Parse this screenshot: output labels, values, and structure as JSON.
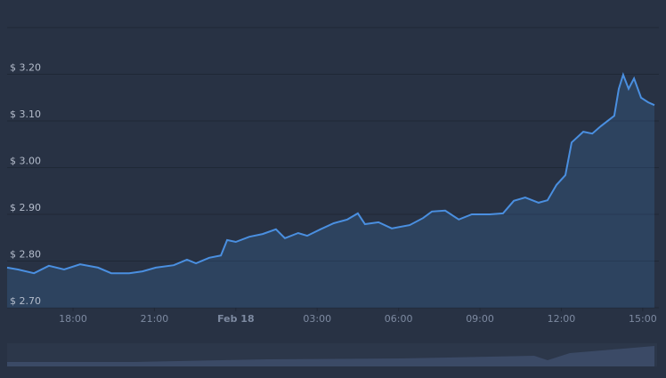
{
  "chart_data": {
    "type": "area",
    "x": [
      15.57,
      15.97,
      16.56,
      17.11,
      17.67,
      18.26,
      18.92,
      19.41,
      20.07,
      20.56,
      21.05,
      21.71,
      22.2,
      22.53,
      23.02,
      23.45,
      23.68,
      24.0,
      24.5,
      24.99,
      25.48,
      25.81,
      26.3,
      26.63,
      27.12,
      27.61,
      28.11,
      28.5,
      28.76,
      29.26,
      29.75,
      30.41,
      30.9,
      31.23,
      31.72,
      32.22,
      32.7,
      33.36,
      33.85,
      34.25,
      34.67,
      35.16,
      35.49,
      35.82,
      36.15,
      36.38,
      36.81,
      37.14,
      37.46,
      37.95,
      38.12,
      38.28,
      38.48,
      38.68,
      38.94,
      39.2,
      39.43
    ],
    "series": [
      {
        "color": "#4a8fe0",
        "values": [
          2.786,
          2.782,
          2.774,
          2.79,
          2.782,
          2.793,
          2.786,
          2.774,
          2.774,
          2.778,
          2.786,
          2.791,
          2.803,
          2.795,
          2.807,
          2.812,
          2.845,
          2.841,
          2.852,
          2.858,
          2.868,
          2.849,
          2.86,
          2.854,
          2.868,
          2.881,
          2.889,
          2.902,
          2.879,
          2.883,
          2.87,
          2.877,
          2.892,
          2.906,
          2.908,
          2.889,
          2.9,
          2.9,
          2.902,
          2.929,
          2.936,
          2.925,
          2.93,
          2.963,
          2.984,
          3.054,
          3.077,
          3.073,
          3.089,
          3.111,
          3.169,
          3.199,
          3.169,
          3.191,
          3.15,
          3.14,
          3.134
        ]
      }
    ],
    "xlim": [
      15.57,
      39.53
    ],
    "xticks": [
      {
        "value": 18,
        "label": "18:00"
      },
      {
        "value": 21,
        "label": "21:00"
      },
      {
        "value": 24,
        "label": "Feb 18"
      },
      {
        "value": 27,
        "label": "03:00"
      },
      {
        "value": 30,
        "label": "06:00"
      },
      {
        "value": 33,
        "label": "09:00"
      },
      {
        "value": 36,
        "label": "12:00"
      },
      {
        "value": 39,
        "label": "15:00"
      }
    ],
    "ylim": [
      2.7,
      3.3
    ],
    "yticks": [
      {
        "value": 2.7,
        "label": "$ 2.70"
      },
      {
        "value": 2.8,
        "label": "$ 2.80"
      },
      {
        "value": 2.9,
        "label": "$ 2.90"
      },
      {
        "value": 3.0,
        "label": "$ 3.00"
      },
      {
        "value": 3.1,
        "label": "$ 3.10"
      },
      {
        "value": 3.2,
        "label": "$ 3.20"
      }
    ],
    "grid": true
  }
}
